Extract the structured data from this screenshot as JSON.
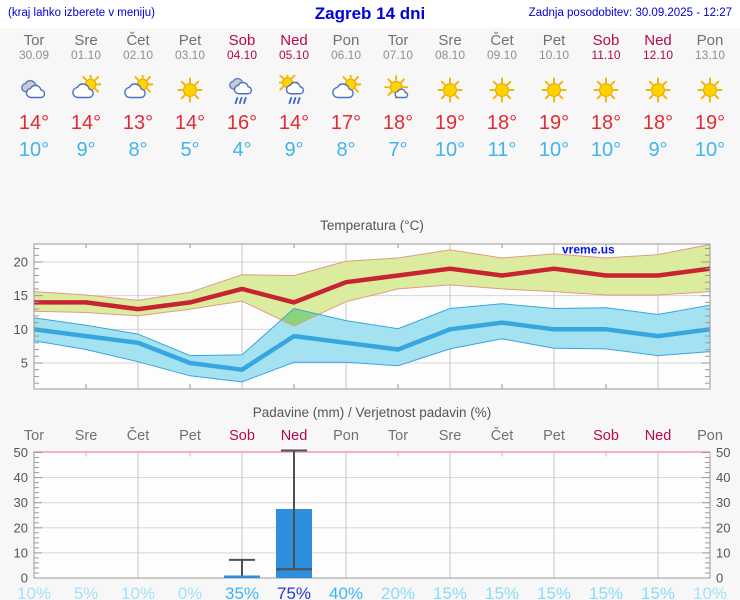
{
  "header": {
    "left": "(kraj lahko izberete v meniju)",
    "title": "Zagreb 14 dni",
    "right": "Zadnja posodobitev: 30.09.2025 - 12:27"
  },
  "watermark": "vreme.us",
  "days": [
    {
      "name": "Tor",
      "date": "30.09",
      "weekend": false,
      "icon": "cloudy",
      "max": "14°",
      "min": "10°",
      "prob": "10%",
      "prob_level": "p10"
    },
    {
      "name": "Sre",
      "date": "01.10",
      "weekend": false,
      "icon": "partly-cloudy",
      "max": "14°",
      "min": "9°",
      "prob": "5%",
      "prob_level": "p10"
    },
    {
      "name": "Čet",
      "date": "02.10",
      "weekend": false,
      "icon": "partly-cloudy",
      "max": "13°",
      "min": "8°",
      "prob": "10%",
      "prob_level": "p10"
    },
    {
      "name": "Pet",
      "date": "03.10",
      "weekend": false,
      "icon": "sunny",
      "max": "14°",
      "min": "5°",
      "prob": "0%",
      "prob_level": "p10"
    },
    {
      "name": "Sob",
      "date": "04.10",
      "weekend": true,
      "icon": "rain",
      "max": "16°",
      "min": "4°",
      "prob": "35%",
      "prob_level": "p40"
    },
    {
      "name": "Ned",
      "date": "05.10",
      "weekend": true,
      "icon": "sun-rain",
      "max": "14°",
      "min": "9°",
      "prob": "75%",
      "prob_level": "p75"
    },
    {
      "name": "Pon",
      "date": "06.10",
      "weekend": false,
      "icon": "partly-cloudy",
      "max": "17°",
      "min": "8°",
      "prob": "40%",
      "prob_level": "p40"
    },
    {
      "name": "Tor",
      "date": "07.10",
      "weekend": false,
      "icon": "mostly-sunny",
      "max": "18°",
      "min": "7°",
      "prob": "20%",
      "prob_level": "p20"
    },
    {
      "name": "Sre",
      "date": "08.10",
      "weekend": false,
      "icon": "sunny",
      "max": "19°",
      "min": "10°",
      "prob": "15%",
      "prob_level": "p20"
    },
    {
      "name": "Čet",
      "date": "09.10",
      "weekend": false,
      "icon": "sunny",
      "max": "18°",
      "min": "11°",
      "prob": "15%",
      "prob_level": "p20"
    },
    {
      "name": "Pet",
      "date": "10.10",
      "weekend": false,
      "icon": "sunny",
      "max": "19°",
      "min": "10°",
      "prob": "15%",
      "prob_level": "p20"
    },
    {
      "name": "Sob",
      "date": "11.10",
      "weekend": true,
      "icon": "sunny",
      "max": "18°",
      "min": "10°",
      "prob": "15%",
      "prob_level": "p20"
    },
    {
      "name": "Ned",
      "date": "12.10",
      "weekend": true,
      "icon": "sunny",
      "max": "18°",
      "min": "9°",
      "prob": "15%",
      "prob_level": "p20"
    },
    {
      "name": "Pon",
      "date": "13.10",
      "weekend": false,
      "icon": "sunny",
      "max": "19°",
      "min": "10°",
      "prob": "10%",
      "prob_level": "p10"
    }
  ],
  "chart_data": [
    {
      "type": "line",
      "title": "Temperatura (°C)",
      "x_labels": [
        "Tor",
        "Sre",
        "Čet",
        "Pet",
        "Sob",
        "Ned",
        "Pon",
        "Tor",
        "Sre",
        "Čet",
        "Pet",
        "Sob",
        "Ned",
        "Pon"
      ],
      "ylim": [
        1,
        22.7
      ],
      "yticks": [
        5,
        10,
        15,
        20
      ],
      "grid": true,
      "series": [
        {
          "name": "max",
          "values": [
            14,
            14,
            13,
            14,
            16,
            14,
            17,
            18,
            19,
            18,
            19,
            18,
            18,
            19
          ]
        },
        {
          "name": "max_band_upper",
          "values": [
            15.6,
            15.1,
            14.3,
            15.5,
            18.1,
            18.0,
            20.1,
            20.6,
            21.8,
            20.6,
            21.2,
            20.6,
            21.1,
            22.6
          ]
        },
        {
          "name": "max_band_lower",
          "values": [
            12.7,
            12.5,
            12.0,
            13.0,
            14.2,
            10.5,
            14.1,
            16.0,
            16.6,
            16.0,
            15.6,
            15.1,
            15.1,
            15.6
          ]
        },
        {
          "name": "min",
          "values": [
            10,
            9,
            8,
            5,
            4,
            9,
            8,
            7,
            10,
            11,
            10,
            10,
            9,
            10
          ]
        },
        {
          "name": "min_band_upper",
          "values": [
            11.7,
            10.6,
            9.3,
            6.1,
            6.2,
            13.1,
            11.3,
            10.1,
            13.1,
            13.8,
            13.1,
            13.2,
            12.2,
            13.6
          ]
        },
        {
          "name": "min_band_lower",
          "values": [
            8.3,
            7.0,
            5.2,
            3.1,
            2.2,
            5.1,
            5.1,
            4.6,
            7.1,
            8.6,
            7.2,
            7.1,
            6.1,
            6.7
          ]
        }
      ],
      "band_overlap_patch": [
        [
          4.755,
          11.41
        ],
        [
          5,
          13.1
        ],
        [
          5.481,
          12.23
        ],
        [
          5,
          10.5
        ]
      ]
    },
    {
      "type": "bar",
      "title": "Padavine (mm) / Verjetnost padavin (%)",
      "categories": [
        "Tor",
        "Sre",
        "Čet",
        "Pet",
        "Sob",
        "Ned",
        "Pon",
        "Tor",
        "Sre",
        "Čet",
        "Pet",
        "Sob",
        "Ned",
        "Pon"
      ],
      "values": [
        0,
        0,
        0,
        0,
        1,
        27.5,
        0,
        0,
        0,
        0,
        0,
        0,
        0,
        0
      ],
      "whiskers": [
        {
          "day": 4,
          "low": 1,
          "high": 7.2,
          "cap_low": false
        },
        {
          "day": 5,
          "low": 3.5,
          "high": 50.8,
          "cap_low": true
        }
      ],
      "probabilities": [
        "10%",
        "5%",
        "10%",
        "0%",
        "35%",
        "75%",
        "40%",
        "20%",
        "15%",
        "15%",
        "15%",
        "15%",
        "15%",
        "10%"
      ],
      "ylim": [
        0,
        50
      ],
      "yticks": [
        0,
        10,
        20,
        30,
        40,
        50
      ],
      "grid": true
    }
  ],
  "colors": {
    "header_blue": "#0000d9",
    "weekday": "#71716f",
    "date": "#90908e",
    "weekend": "#b50a4e",
    "temp_max": "#e22b35",
    "temp_min": "#41b4ee",
    "line_max": "#c82333",
    "band_max": "#dcec9f",
    "band_max_edge": "#e29a85",
    "line_min": "#37a6df",
    "band_min": "#a4e2f2",
    "band_min_edge": "#37a6df",
    "band_overlap": "#8bd47c",
    "bar": "#2f8fdf",
    "whisker": "#4f4f4f",
    "grid_v": "#c6c6c6",
    "grid_h": "#d6d6d6",
    "frame": "#999999",
    "axis_text": "#555555",
    "plot_bg": "#fdfdfd",
    "precip_top": "#f19ab5",
    "watermark_blue": "#0013e8",
    "p10": "#a2e2fa",
    "p20": "#8adcf8",
    "p40": "#3fb6f2",
    "p75": "#2a35d0"
  }
}
